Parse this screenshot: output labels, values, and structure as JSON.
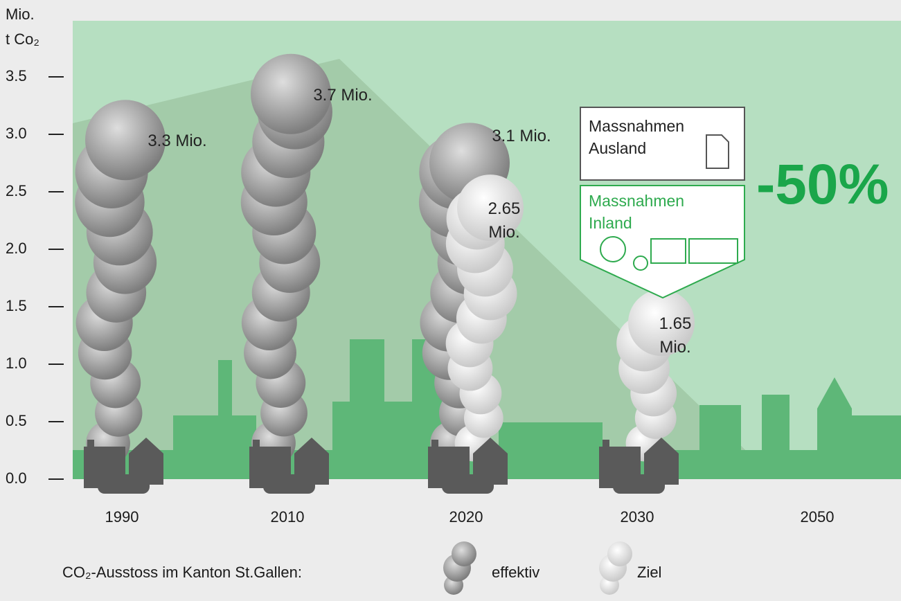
{
  "chart_data": {
    "type": "plume",
    "y_label": [
      "Mio.",
      "t Co₂"
    ],
    "categories": [
      "1990",
      "2010",
      "2020",
      "2030",
      "2050"
    ],
    "series": [
      {
        "name": "effektiv",
        "color": "#8a8a8a",
        "values": [
          3.3,
          3.7,
          3.1,
          null,
          null
        ],
        "value_labels": [
          "3.3 Mio.",
          "3.7 Mio.",
          "3.1 Mio.",
          null,
          null
        ]
      },
      {
        "name": "Ziel",
        "color": "#ffffff",
        "values": [
          null,
          null,
          2.65,
          1.65,
          null
        ],
        "value_labels": [
          null,
          null,
          "2.65\nMio.",
          "1.65\nMio.",
          null
        ]
      }
    ],
    "ylim": [
      0,
      4
    ],
    "yticks": [
      {
        "value": 0,
        "label": "0.0"
      },
      0.5,
      {
        "value": 1,
        "label": "1.0"
      },
      1.5,
      {
        "value": 2,
        "label": "2.0"
      },
      2.5,
      {
        "value": 3,
        "label": "3.0"
      },
      3.5
    ],
    "legend_title": "CO₂-Ausstoss im Kanton St.Gallen:",
    "annotations": {
      "ausland": "Massnahmen\nAusland",
      "inland": "Massnahmen\nInland",
      "reduction": "-50%"
    }
  }
}
